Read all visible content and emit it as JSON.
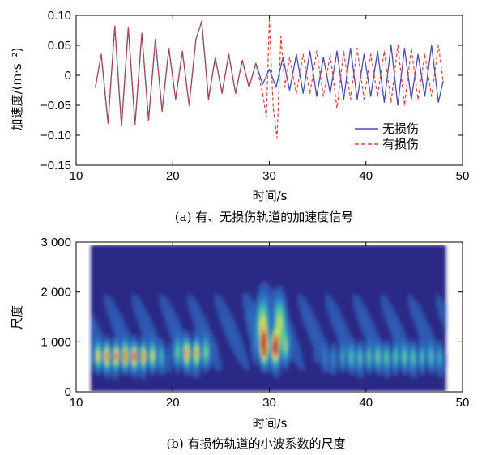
{
  "chart_data": [
    {
      "type": "line",
      "caption": "(a)   有、无损伤轨道的加速度信号",
      "xlabel": "时间/s",
      "ylabel": "加速度/(m·s⁻²)",
      "xlim": [
        10,
        50
      ],
      "ylim": [
        -0.15,
        0.1
      ],
      "x_ticks": [
        "10",
        "20",
        "30",
        "40",
        "50"
      ],
      "y_ticks": [
        "−0.15",
        "−0.10",
        "−0.05",
        "0",
        "0.05",
        "0.10"
      ],
      "legend_position": "lower-right",
      "series": [
        {
          "name": "无损伤",
          "color": "#4a4ab0",
          "style": "solid",
          "x": [
            12,
            12.6,
            13.3,
            14.0,
            14.7,
            15.4,
            16.1,
            16.8,
            17.5,
            18.2,
            18.9,
            19.6,
            20.3,
            21.0,
            21.7,
            22.4,
            23.0,
            23.7,
            24.4,
            25.1,
            25.8,
            26.5,
            27.2,
            27.9,
            28.6,
            29.3,
            30.0,
            30.7,
            31.4,
            32.1,
            32.8,
            33.5,
            34.2,
            34.9,
            35.6,
            36.3,
            37.0,
            37.7,
            38.4,
            39.1,
            39.8,
            40.5,
            41.2,
            41.9,
            42.6,
            43.3,
            44.0,
            44.7,
            45.4,
            46.1,
            46.8,
            47.5,
            48
          ],
          "y": [
            -0.02,
            0.035,
            -0.08,
            0.082,
            -0.085,
            0.08,
            -0.082,
            0.07,
            -0.075,
            0.06,
            -0.06,
            0.045,
            -0.04,
            0.04,
            -0.05,
            0.06,
            0.09,
            -0.04,
            0.03,
            -0.03,
            0.035,
            -0.03,
            0.025,
            -0.02,
            0.02,
            -0.015,
            0.01,
            -0.02,
            0.03,
            -0.025,
            0.035,
            -0.03,
            0.04,
            -0.035,
            0.03,
            -0.03,
            0.04,
            -0.04,
            0.045,
            -0.04,
            0.035,
            -0.035,
            0.04,
            -0.045,
            0.05,
            -0.05,
            0.045,
            -0.04,
            0.035,
            -0.035,
            0.05,
            -0.045,
            -0.01
          ]
        },
        {
          "name": "有损伤",
          "color": "#e0403a",
          "style": "dashed",
          "x": [
            12,
            12.6,
            13.3,
            14.0,
            14.7,
            15.4,
            16.1,
            16.8,
            17.5,
            18.2,
            18.9,
            19.6,
            20.3,
            21.0,
            21.7,
            22.4,
            23.0,
            23.7,
            24.4,
            25.1,
            25.8,
            26.5,
            27.2,
            27.9,
            28.6,
            29.3,
            29.7,
            30.0,
            30.4,
            30.8,
            31.2,
            31.6,
            32.1,
            32.8,
            33.5,
            34.2,
            34.9,
            35.6,
            36.3,
            37.0,
            37.7,
            38.4,
            39.1,
            39.8,
            40.5,
            41.2,
            41.9,
            42.6,
            43.3,
            44.0,
            44.7,
            45.4,
            46.1,
            46.8,
            47.5,
            48
          ],
          "y": [
            -0.02,
            0.035,
            -0.08,
            0.082,
            -0.085,
            0.08,
            -0.082,
            0.07,
            -0.075,
            0.06,
            -0.06,
            0.045,
            -0.04,
            0.04,
            -0.05,
            0.06,
            0.09,
            -0.04,
            0.03,
            -0.03,
            0.035,
            -0.03,
            0.025,
            -0.02,
            0.02,
            -0.03,
            -0.07,
            0.092,
            -0.055,
            -0.105,
            0.065,
            -0.02,
            0.03,
            -0.03,
            0.035,
            -0.03,
            0.04,
            -0.035,
            0.035,
            -0.055,
            0.04,
            -0.04,
            0.045,
            -0.04,
            0.035,
            -0.035,
            0.04,
            -0.045,
            0.05,
            -0.05,
            0.045,
            -0.04,
            0.035,
            -0.035,
            0.05,
            -0.01
          ]
        }
      ]
    },
    {
      "type": "heatmap",
      "caption": "(b)   有损伤轨道的小波系数的尺度",
      "xlabel": "时间/s",
      "ylabel": "尺度",
      "xlim": [
        10,
        50
      ],
      "ylim": [
        0,
        3000
      ],
      "x_ticks": [
        "10",
        "20",
        "30",
        "40",
        "50"
      ],
      "y_ticks": [
        "0",
        "1 000",
        "2 000",
        "3 000"
      ],
      "data_extent": {
        "x": [
          11.5,
          48.3
        ],
        "y": [
          0,
          2950
        ]
      },
      "colormap": [
        "#2a2a86",
        "#2f5fb8",
        "#30a0c8",
        "#60d090",
        "#e8e040",
        "#e87030",
        "#c02020"
      ],
      "hotspots": [
        {
          "x_range": [
            12,
            18
          ],
          "scale": 720,
          "intensity": 0.8
        },
        {
          "x_range": [
            21,
            23
          ],
          "scale": 780,
          "intensity": 0.7
        },
        {
          "x_range": [
            29.5,
            31
          ],
          "scale": 900,
          "intensity": 1.0
        },
        {
          "x_range": [
            29,
            31
          ],
          "scale": 1400,
          "intensity": 0.55
        },
        {
          "x_range": [
            37,
            48
          ],
          "scale": 700,
          "intensity": 0.4
        }
      ]
    }
  ]
}
